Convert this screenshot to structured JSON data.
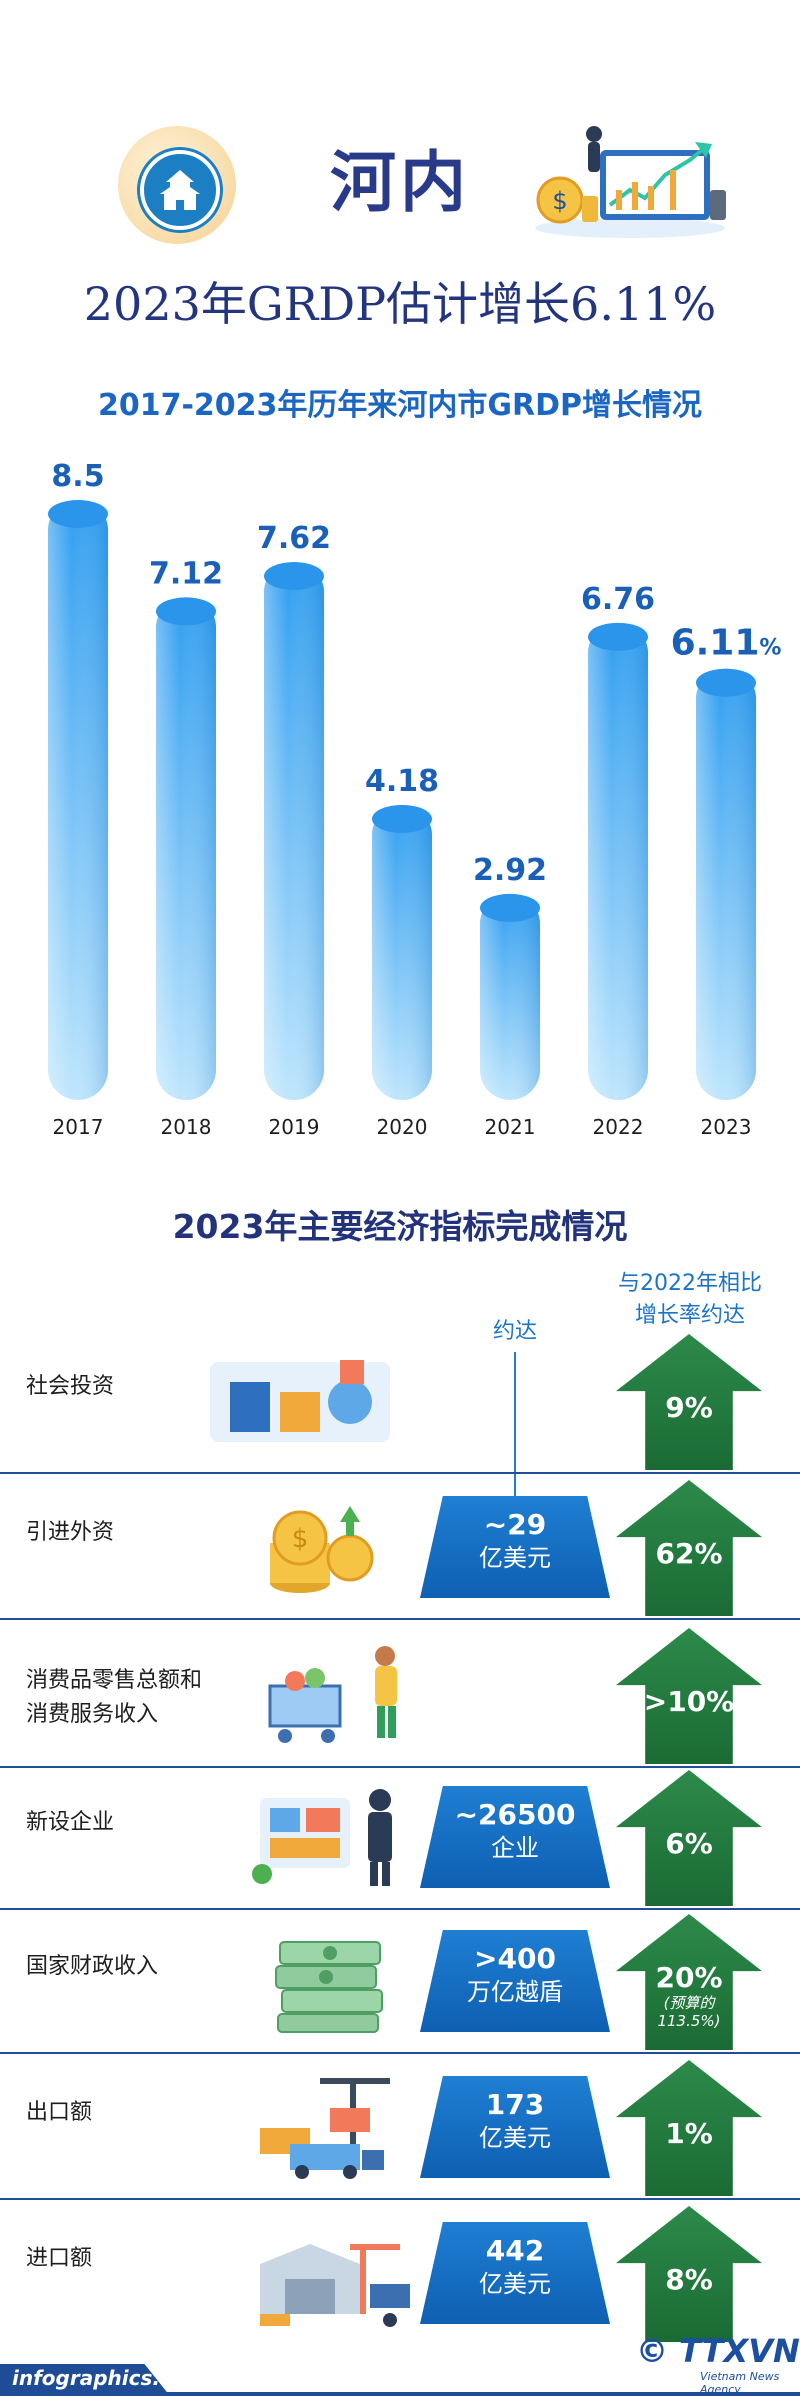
{
  "header": {
    "city": "河内",
    "headline": "2023年GRDP估计增长6.11%",
    "chart_title": "2017-2023年历年来河内市GRDP增长情况"
  },
  "chart_data": {
    "type": "bar",
    "title": "2017-2023年历年来河内市GRDP增长情况",
    "categories": [
      "2017",
      "2018",
      "2019",
      "2020",
      "2021",
      "2022",
      "2023"
    ],
    "values": [
      8.5,
      7.12,
      7.62,
      4.18,
      2.92,
      6.76,
      6.11
    ],
    "value_labels": [
      "8.5",
      "7.12",
      "7.62",
      "4.18",
      "2.92",
      "6.76",
      "6.11"
    ],
    "highlight_suffix": "%",
    "highlight_index": 6,
    "ylim": [
      0,
      8.5
    ],
    "grid": false,
    "colors": {
      "bar_top": "#2f9ef0",
      "bar_bottom": "#bfe6fd",
      "label": "#1a5fb8"
    }
  },
  "indicators": {
    "section_title": "2023年主要经济指标完成情况",
    "col_value": "约达",
    "col_growth": "与2022年相比\n增长率约达",
    "rows": [
      {
        "label": "社会投资",
        "value": "",
        "unit": "",
        "growth": "9%",
        "note": "",
        "icon": "investment-illustration"
      },
      {
        "label": "引进外资",
        "value": "~29",
        "unit": "亿美元",
        "growth": "62%",
        "note": "",
        "icon": "coins-illustration"
      },
      {
        "label": "消费品零售总额和\n消费服务收入",
        "value": "",
        "unit": "",
        "growth": ">10%",
        "note": "",
        "icon": "shopping-illustration"
      },
      {
        "label": "新设企业",
        "value": "~26500",
        "unit": "企业",
        "growth": "6%",
        "note": "",
        "icon": "business-illustration"
      },
      {
        "label": "国家财政收入",
        "value": ">400",
        "unit": "万亿越盾",
        "growth": "20%",
        "note": "(预算的\n113.5%)",
        "icon": "money-illustration"
      },
      {
        "label": "出口额",
        "value": "173",
        "unit": "亿美元",
        "growth": "1%",
        "note": "",
        "icon": "export-illustration"
      },
      {
        "label": "进口额",
        "value": "442",
        "unit": "亿美元",
        "growth": "8%",
        "note": "",
        "icon": "import-illustration"
      }
    ]
  },
  "footer": {
    "site": "infographics.vn",
    "brand": "© TTXVN",
    "brand_sub": "Vietnam News Agency"
  }
}
